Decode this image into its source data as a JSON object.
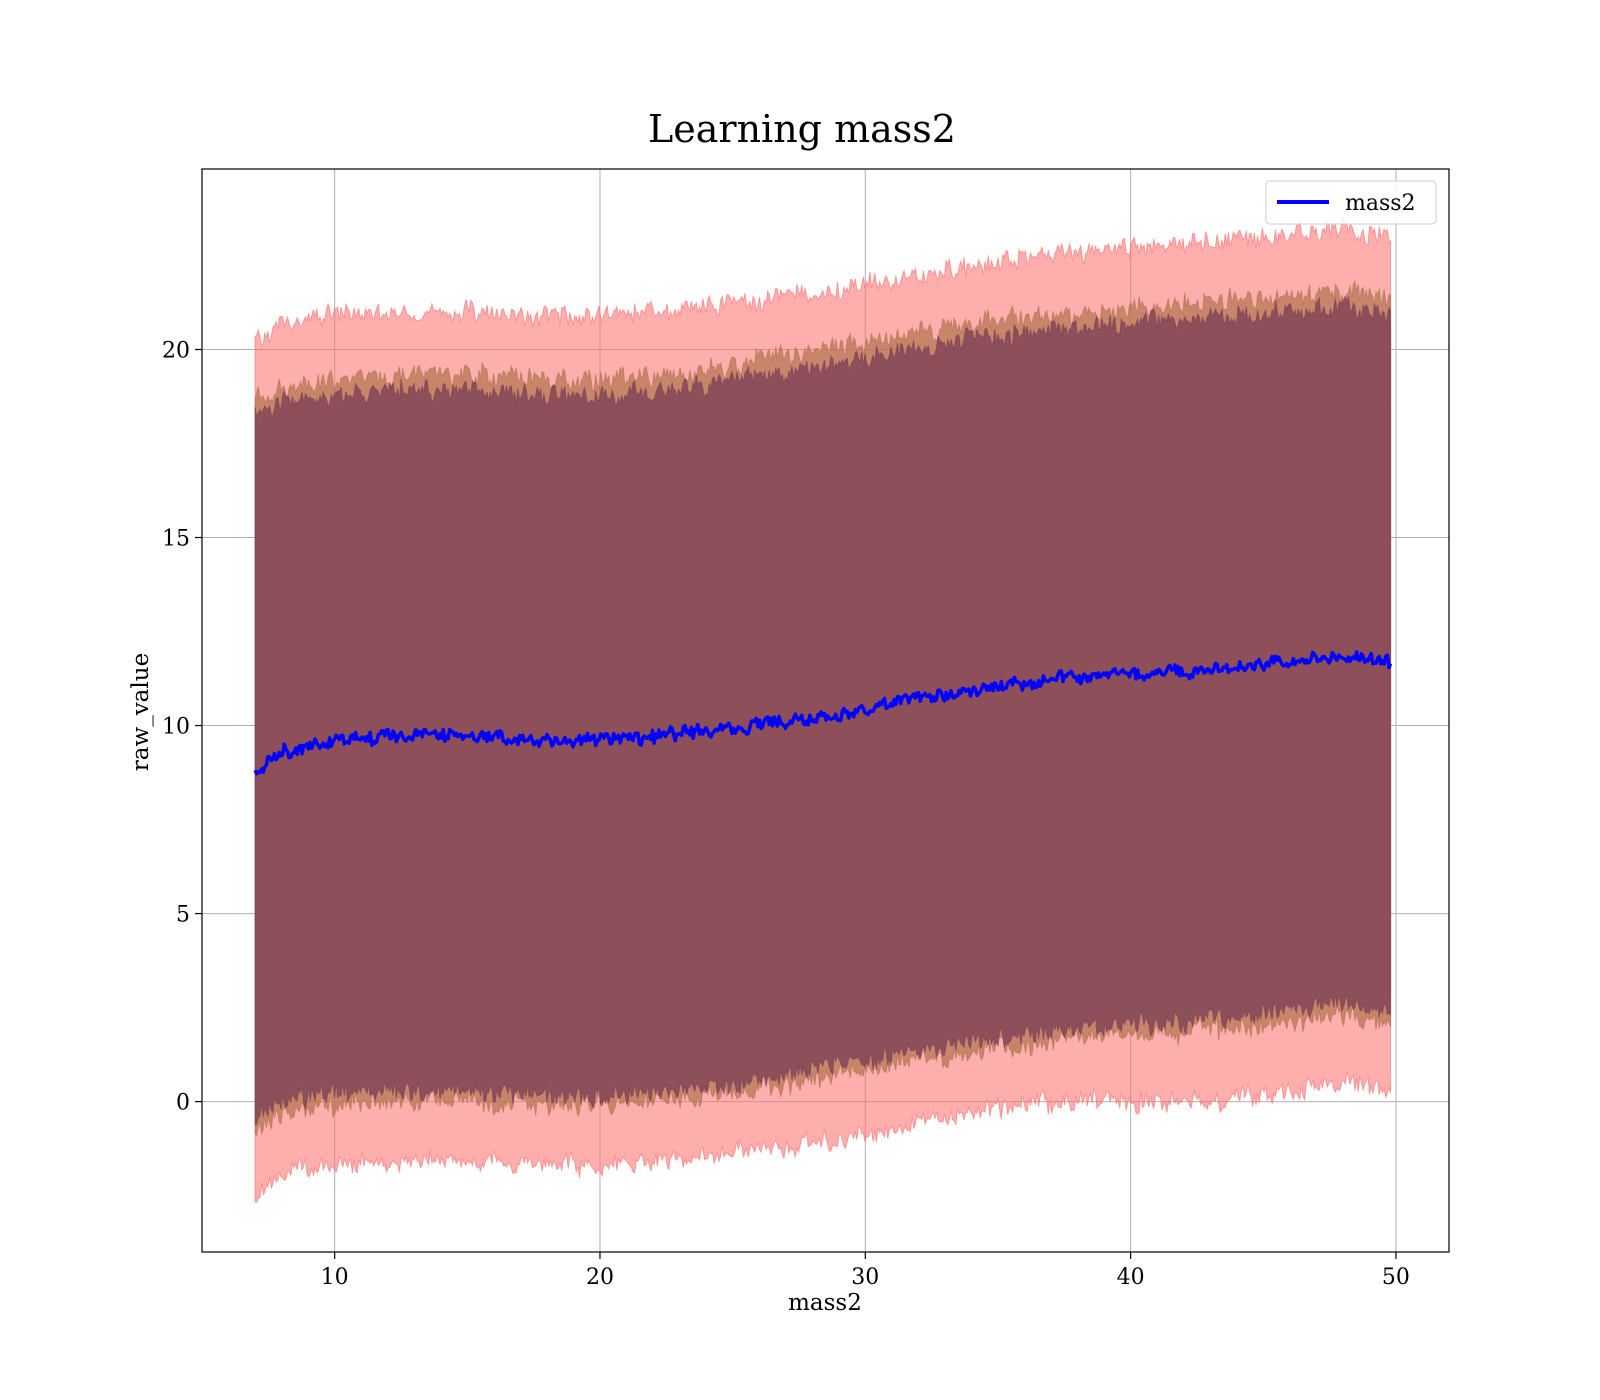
{
  "chart_data": {
    "type": "line",
    "title": "Learning mass2",
    "xlabel": "mass2",
    "ylabel": "raw_value",
    "xlim": [
      5,
      52
    ],
    "ylim": [
      -4,
      24.8
    ],
    "x_ticks": [
      10,
      20,
      30,
      40,
      50
    ],
    "y_ticks": [
      0,
      5,
      10,
      15,
      20
    ],
    "grid": true,
    "legend": {
      "location": "top-right",
      "entries": [
        "mass2"
      ]
    },
    "colors": {
      "line": "#0000ff",
      "outer_band": "#ff6b6b",
      "middle_band": "#b0734d",
      "inner_band": "#7a3e55"
    },
    "series": [
      {
        "name": "mass2",
        "x": [
          7,
          8,
          10,
          12,
          14,
          16,
          18,
          20,
          22,
          24,
          26,
          28,
          30,
          32,
          34,
          36,
          38,
          40,
          42,
          44,
          46,
          48,
          49.8
        ],
        "y": [
          8.7,
          9.3,
          9.6,
          9.7,
          9.75,
          9.7,
          9.6,
          9.6,
          9.7,
          9.85,
          10.0,
          10.2,
          10.45,
          10.7,
          10.95,
          11.1,
          11.3,
          11.4,
          11.45,
          11.55,
          11.7,
          11.85,
          11.7
        ]
      }
    ],
    "bands": [
      {
        "x": [
          7,
          8,
          10,
          12,
          14,
          16,
          18,
          20,
          22,
          24,
          26,
          28,
          30,
          32,
          34,
          36,
          38,
          40,
          42,
          44,
          46,
          48,
          49.8
        ],
        "lower": [
          -2.5,
          -1.8,
          -1.7,
          -1.6,
          -1.55,
          -1.6,
          -1.7,
          -1.7,
          -1.6,
          -1.45,
          -1.3,
          -1.1,
          -0.9,
          -0.6,
          -0.3,
          -0.1,
          0.1,
          0.0,
          0.0,
          0.1,
          0.3,
          0.5,
          0.3
        ],
        "upper": [
          20.2,
          20.7,
          20.9,
          20.9,
          21.0,
          21.0,
          20.9,
          20.9,
          21.0,
          21.1,
          21.3,
          21.5,
          21.7,
          22.0,
          22.2,
          22.4,
          22.6,
          22.7,
          22.8,
          22.9,
          23.1,
          23.2,
          23.0
        ]
      },
      {
        "x": [
          7,
          8,
          10,
          12,
          14,
          16,
          18,
          20,
          22,
          24,
          26,
          28,
          30,
          32,
          34,
          36,
          38,
          40,
          42,
          44,
          46,
          48,
          49.8
        ],
        "lower": [
          -0.9,
          -0.3,
          -0.1,
          0.0,
          0.05,
          0.0,
          -0.1,
          -0.1,
          0.0,
          0.15,
          0.35,
          0.6,
          0.85,
          1.1,
          1.35,
          1.5,
          1.7,
          1.8,
          1.85,
          2.0,
          2.15,
          2.35,
          2.1
        ],
        "upper": [
          18.7,
          19.0,
          19.2,
          19.3,
          19.35,
          19.3,
          19.2,
          19.2,
          19.3,
          19.45,
          19.7,
          19.9,
          20.2,
          20.45,
          20.7,
          20.85,
          21.0,
          21.1,
          21.2,
          21.3,
          21.4,
          21.55,
          21.3
        ]
      },
      {
        "x": [
          7,
          8,
          10,
          12,
          14,
          16,
          18,
          20,
          22,
          24,
          26,
          28,
          30,
          32,
          34,
          36,
          38,
          40,
          42,
          44,
          46,
          48,
          49.8
        ],
        "lower": [
          -0.5,
          0.0,
          0.2,
          0.25,
          0.3,
          0.25,
          0.15,
          0.15,
          0.25,
          0.4,
          0.6,
          0.85,
          1.1,
          1.35,
          1.6,
          1.75,
          1.95,
          2.05,
          2.1,
          2.25,
          2.4,
          2.6,
          2.4
        ],
        "upper": [
          18.2,
          18.6,
          18.8,
          18.9,
          18.95,
          18.9,
          18.8,
          18.8,
          18.9,
          19.05,
          19.3,
          19.5,
          19.8,
          20.05,
          20.3,
          20.45,
          20.6,
          20.7,
          20.8,
          20.9,
          21.0,
          21.15,
          20.9
        ]
      }
    ]
  }
}
